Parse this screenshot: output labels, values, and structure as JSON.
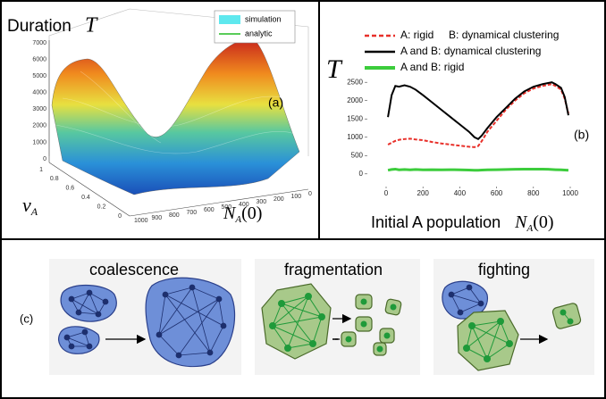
{
  "panel_a": {
    "title": "Duration",
    "title_symbol": "T",
    "label": "(a)",
    "legend": [
      "simulation",
      "analytic"
    ],
    "z_ticks": [
      7000,
      6000,
      5000,
      4000,
      3000,
      2000,
      1000,
      0
    ],
    "v_ticks": [
      1,
      0.8,
      0.6,
      0.4,
      0.2,
      0
    ],
    "n_ticks": [
      1000,
      900,
      800,
      700,
      600,
      500,
      400,
      300,
      200,
      100,
      0
    ],
    "v_label": "v",
    "v_sub": "A",
    "n_label": "N",
    "n_sub": "A",
    "n_suffix": "(0)"
  },
  "chart_data": {
    "type": "line",
    "y_symbol": "T",
    "label": "(b)",
    "x_label": "Initial A population",
    "x_label_symbol": "N",
    "x_label_sub": "A",
    "x_label_suffix": "(0)",
    "x": [
      10,
      30,
      50,
      70,
      100,
      130,
      160,
      200,
      250,
      300,
      350,
      400,
      450,
      480,
      500,
      520,
      550,
      600,
      650,
      700,
      750,
      800,
      850,
      880,
      900,
      920,
      950,
      970,
      990
    ],
    "series": [
      {
        "name": "A: rigid     B: dynamical clustering",
        "color": "#e8302a",
        "dash": true,
        "values": [
          800,
          850,
          900,
          930,
          950,
          960,
          940,
          920,
          870,
          830,
          800,
          770,
          740,
          730,
          760,
          900,
          1150,
          1450,
          1750,
          2000,
          2200,
          2330,
          2400,
          2430,
          2450,
          2400,
          2300,
          2050,
          1650
        ]
      },
      {
        "name": "A and B: dynamical clustering",
        "color": "#000000",
        "dash": false,
        "values": [
          1550,
          2150,
          2400,
          2380,
          2420,
          2380,
          2300,
          2150,
          1950,
          1750,
          1550,
          1350,
          1150,
          1000,
          950,
          1050,
          1250,
          1550,
          1800,
          2050,
          2250,
          2380,
          2450,
          2480,
          2500,
          2450,
          2350,
          2100,
          1600
        ]
      },
      {
        "name": "A and B: rigid",
        "color": "#3ccc3c",
        "dash": false,
        "values": [
          100,
          120,
          130,
          110,
          120,
          110,
          120,
          110,
          115,
          110,
          115,
          110,
          105,
          100,
          100,
          105,
          110,
          115,
          120,
          125,
          130,
          130,
          130,
          125,
          120,
          115,
          110,
          105,
          100
        ]
      }
    ],
    "xlim": [
      0,
      1000
    ],
    "xticks": [
      0,
      200,
      400,
      600,
      800,
      1000
    ],
    "ylim": [
      -200,
      2700
    ],
    "yticks": [
      0,
      500,
      1000,
      1500,
      2000,
      2500
    ],
    "grid": false
  },
  "panel_c": {
    "label": "(c)",
    "captions": [
      "coalescence",
      "fragmentation",
      "fighting"
    ]
  }
}
